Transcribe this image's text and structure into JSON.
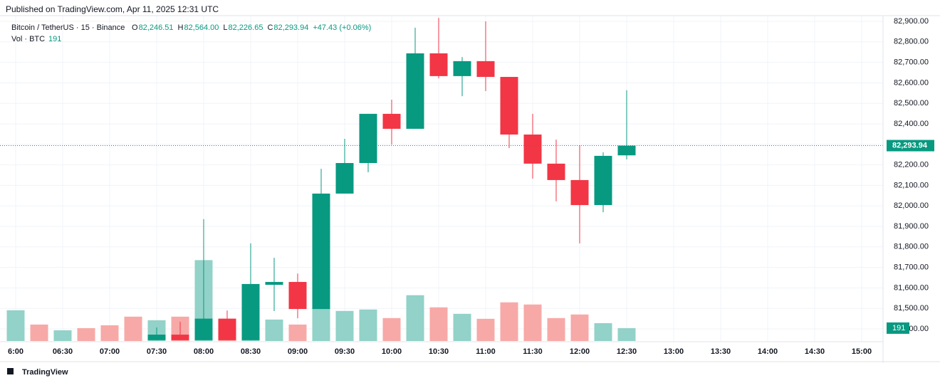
{
  "chart_data": {
    "type": "candlestick",
    "published": "Published on TradingView.com, Apr 11, 2025 12:31 UTC",
    "symbol": "Bitcoin / TetherUS · 15 · Binance",
    "ohlc_letters": {
      "open": "O",
      "high": "H",
      "low": "L",
      "close": "C"
    },
    "last_labels": {
      "open": "82,246.51",
      "high": "82,564.00",
      "low": "82,226.65",
      "close": "82,293.94"
    },
    "change_label": "+47.43 (+0.06%)",
    "volume_title": "Vol · BTC",
    "volume_label": "191",
    "brand": "TradingView",
    "up_color": "#089981",
    "down_color": "#f23645",
    "volume_up_color": "#92d2c8",
    "volume_down_color": "#f7a9a7",
    "x": [
      "06:00",
      "06:15",
      "06:30",
      "06:45",
      "07:00",
      "07:15",
      "07:30",
      "07:45",
      "08:00",
      "08:15",
      "08:30",
      "08:45",
      "09:00",
      "09:15",
      "09:30",
      "09:45",
      "10:00",
      "10:15",
      "10:30",
      "10:45",
      "11:00",
      "11:15",
      "11:30",
      "11:45",
      "12:00",
      "12:15",
      "12:30"
    ],
    "open": [
      null,
      null,
      null,
      null,
      null,
      null,
      81345,
      81372,
      81345,
      81450,
      81345,
      81615,
      81629,
      81497,
      82060,
      82209,
      82449,
      82376,
      82744,
      82633,
      82706,
      82629,
      82348,
      82206,
      82126,
      82004,
      82246.51
    ],
    "high": [
      null,
      null,
      null,
      null,
      null,
      null,
      81407,
      81435,
      81935,
      81490,
      81817,
      81747,
      81670,
      82181,
      82327,
      82449,
      82518,
      82869,
      82917,
      82726,
      82900,
      82629,
      82449,
      82323,
      82296,
      82261,
      82564
    ],
    "low": [
      null,
      null,
      null,
      null,
      null,
      null,
      81345,
      81345,
      81345,
      81345,
      81345,
      81487,
      81452,
      81497,
      82060,
      82164,
      82299,
      82376,
      82622,
      82535,
      82560,
      82282,
      82133,
      82022,
      81817,
      81969,
      82226.65
    ],
    "close": [
      null,
      null,
      null,
      null,
      null,
      null,
      81372,
      81345,
      81450,
      81345,
      81619,
      81629,
      81497,
      82060,
      82209,
      82449,
      82376,
      82744,
      82633,
      82706,
      82629,
      82348,
      82206,
      82126,
      82004,
      82244,
      82293.94
    ],
    "volume": [
      456,
      244,
      159,
      191,
      233,
      361,
      308,
      361,
      1199,
      329,
      350,
      318,
      244,
      594,
      446,
      467,
      340,
      679,
      499,
      403,
      329,
      573,
      541,
      340,
      393,
      265,
      191
    ],
    "volume_up": [
      true,
      false,
      true,
      false,
      false,
      false,
      true,
      false,
      true,
      false,
      true,
      true,
      false,
      true,
      true,
      true,
      false,
      true,
      false,
      true,
      false,
      false,
      false,
      false,
      false,
      true,
      true
    ],
    "volume_lim": [
      0,
      1900
    ],
    "ylim": [
      81337.5,
      82927.8
    ],
    "yticks": [
      {
        "value": 81400,
        "label": "81,400.00"
      },
      {
        "value": 81500,
        "label": "81,500.00"
      },
      {
        "value": 81600,
        "label": "81,600.00"
      },
      {
        "value": 81700,
        "label": "81,700.00"
      },
      {
        "value": 81800,
        "label": "81,800.00"
      },
      {
        "value": 81900,
        "label": "81,900.00"
      },
      {
        "value": 82000,
        "label": "82,000.00"
      },
      {
        "value": 82100,
        "label": "82,100.00"
      },
      {
        "value": 82200,
        "label": "82,200.00"
      },
      {
        "value": 82300,
        "label": "82,300.00"
      },
      {
        "value": 82400,
        "label": "82,400.00"
      },
      {
        "value": 82500,
        "label": "82,500.00"
      },
      {
        "value": 82600,
        "label": "82,600.00"
      },
      {
        "value": 82700,
        "label": "82,700.00"
      },
      {
        "value": 82800,
        "label": "82,800.00"
      },
      {
        "value": 82900,
        "label": "82,900.00"
      }
    ],
    "xtick_labels": [
      "6:00",
      "06:30",
      "07:00",
      "07:30",
      "08:00",
      "08:30",
      "09:00",
      "09:30",
      "10:00",
      "10:30",
      "11:00",
      "11:30",
      "12:00",
      "12:30",
      "13:00",
      "13:30",
      "14:00",
      "14:30",
      "15:00"
    ],
    "grid": true
  }
}
